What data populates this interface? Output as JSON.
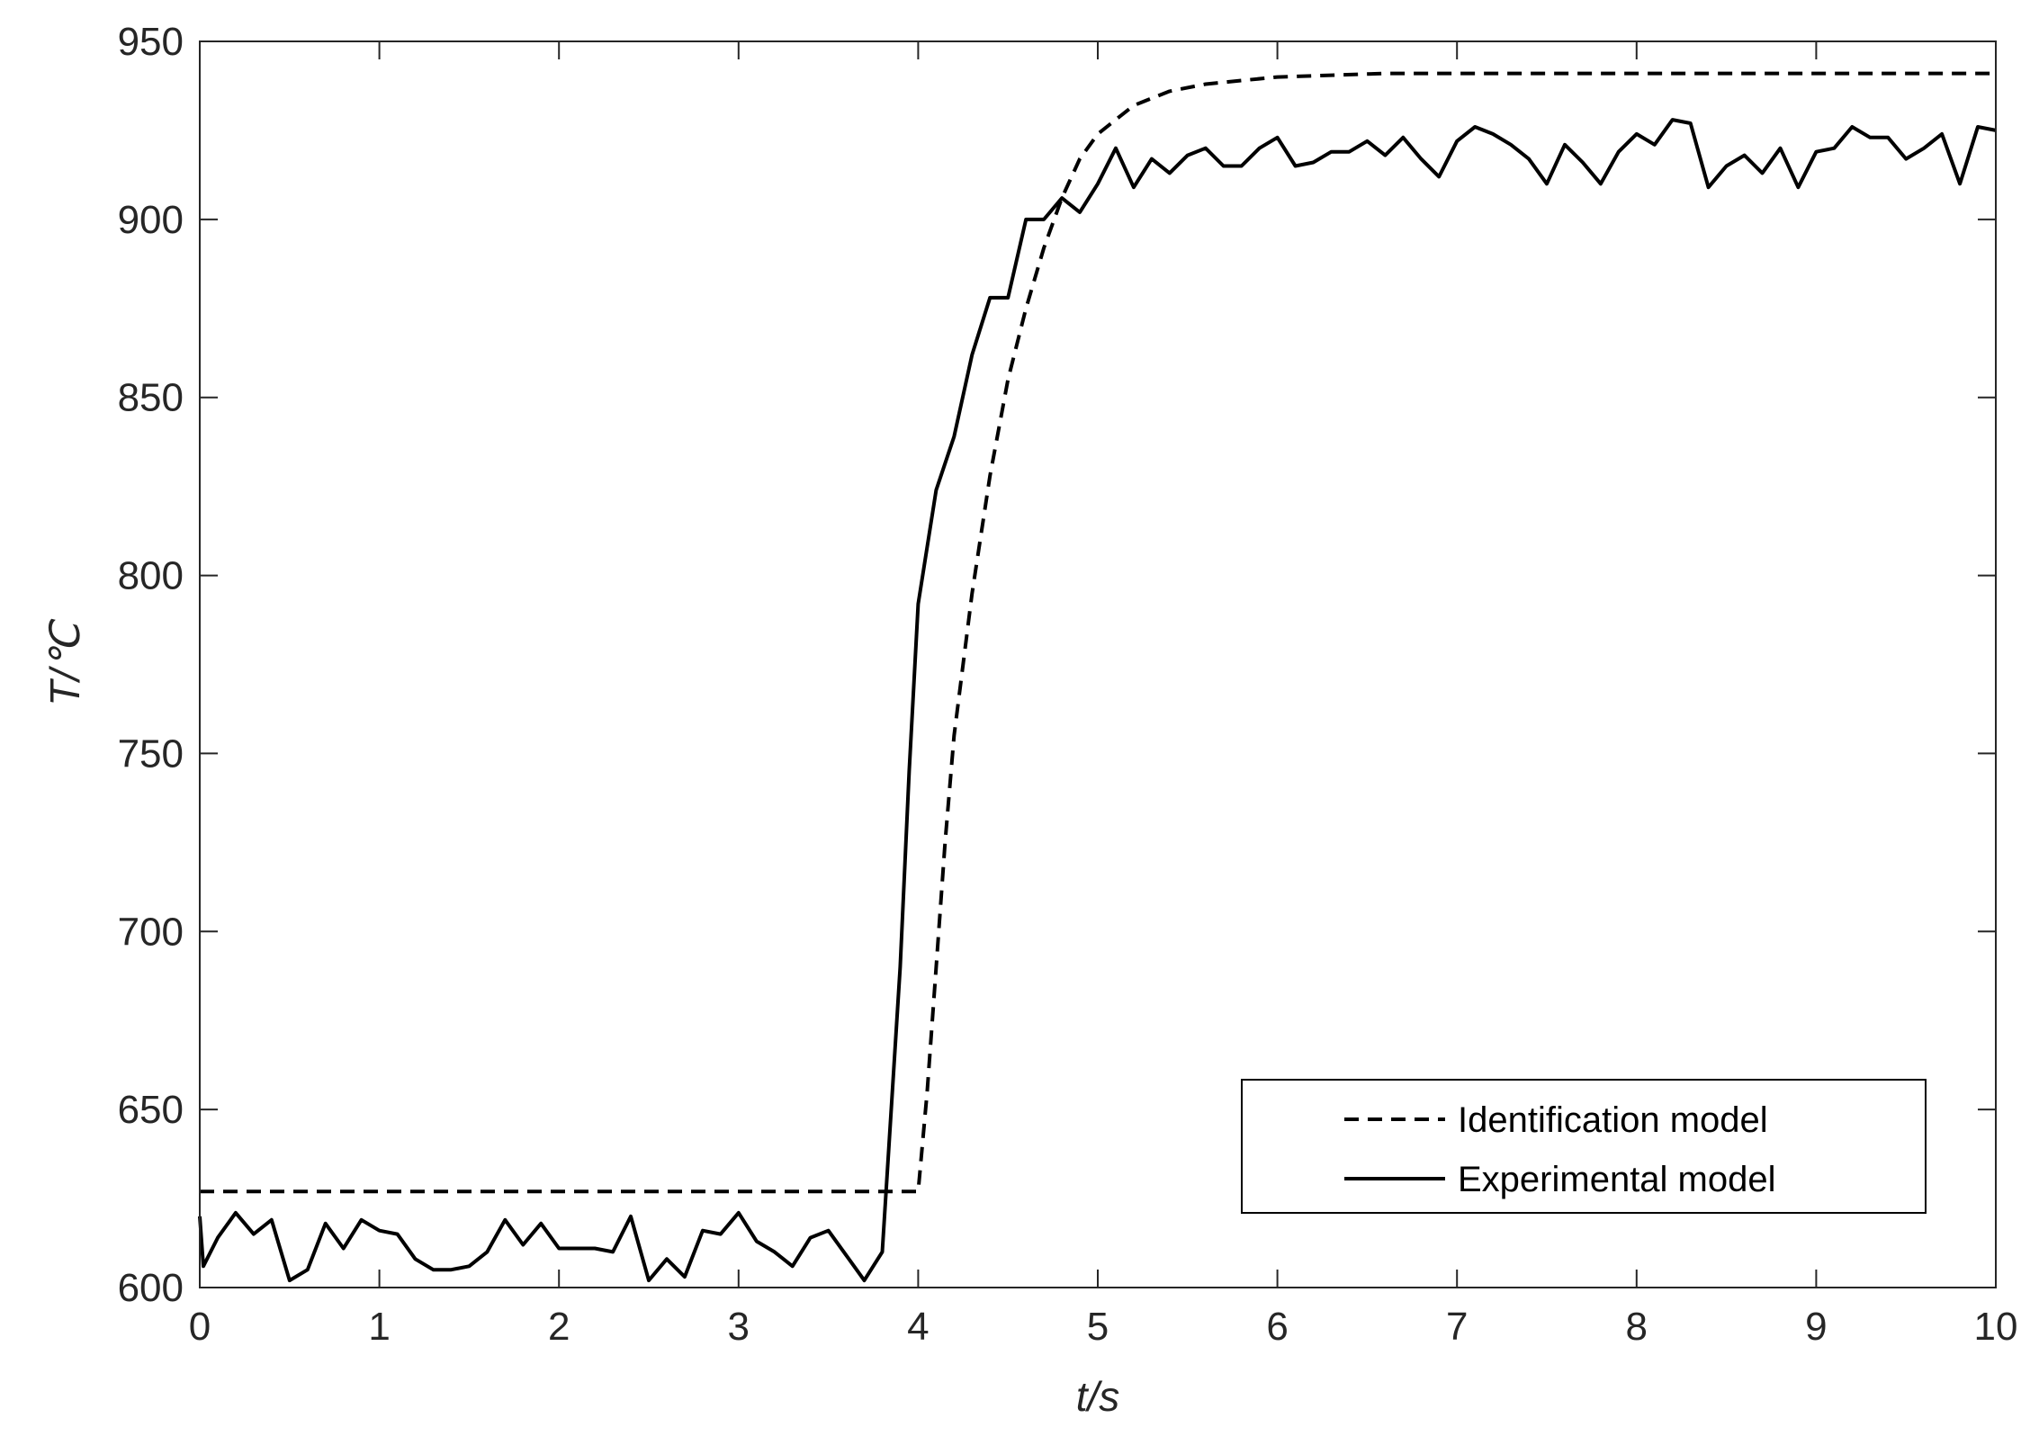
{
  "chart_data": {
    "type": "line",
    "xlabel": "t/s",
    "ylabel": "T/℃",
    "xlim": [
      0,
      10
    ],
    "ylim": [
      600,
      950
    ],
    "xticks": [
      "0",
      "1",
      "2",
      "3",
      "4",
      "5",
      "6",
      "7",
      "8",
      "9",
      "10"
    ],
    "yticks": [
      "600",
      "650",
      "700",
      "750",
      "800",
      "850",
      "900",
      "950"
    ],
    "grid": false,
    "legend_position": "bottom-right",
    "colors": {
      "line": "#000000",
      "axis": "#262626"
    },
    "series": [
      {
        "name": "Identification model",
        "style": "dashed",
        "x": [
          0,
          4.0,
          4.05,
          4.1,
          4.15,
          4.2,
          4.3,
          4.4,
          4.5,
          4.6,
          4.7,
          4.8,
          4.9,
          5.0,
          5.2,
          5.4,
          5.6,
          5.8,
          6.0,
          6.3,
          6.6,
          7.0,
          8.0,
          9.0,
          10.0
        ],
        "y": [
          627,
          627,
          655,
          690,
          725,
          755,
          795,
          828,
          855,
          875,
          892,
          906,
          917,
          924,
          932,
          936,
          938,
          939,
          940,
          940.5,
          941,
          941,
          941,
          941,
          941
        ]
      },
      {
        "name": "Experimental model",
        "style": "solid",
        "x": [
          0,
          0.02,
          0.1,
          0.2,
          0.3,
          0.4,
          0.5,
          0.6,
          0.7,
          0.8,
          0.9,
          1.0,
          1.1,
          1.2,
          1.3,
          1.4,
          1.5,
          1.6,
          1.7,
          1.8,
          1.9,
          2.0,
          2.1,
          2.2,
          2.3,
          2.4,
          2.5,
          2.6,
          2.7,
          2.8,
          2.9,
          3.0,
          3.1,
          3.2,
          3.3,
          3.4,
          3.5,
          3.6,
          3.7,
          3.8,
          3.9,
          3.95,
          4.0,
          4.1,
          4.2,
          4.3,
          4.4,
          4.5,
          4.6,
          4.7,
          4.8,
          4.9,
          5.0,
          5.1,
          5.2,
          5.3,
          5.4,
          5.5,
          5.6,
          5.7,
          5.8,
          5.9,
          6.0,
          6.1,
          6.2,
          6.3,
          6.4,
          6.5,
          6.6,
          6.7,
          6.8,
          6.9,
          7.0,
          7.1,
          7.2,
          7.3,
          7.4,
          7.5,
          7.6,
          7.7,
          7.8,
          7.9,
          8.0,
          8.1,
          8.2,
          8.3,
          8.4,
          8.5,
          8.6,
          8.7,
          8.8,
          8.9,
          9.0,
          9.1,
          9.2,
          9.3,
          9.4,
          9.5,
          9.6,
          9.7,
          9.8,
          9.9,
          10.0
        ],
        "y": [
          620,
          606,
          614,
          621,
          615,
          619,
          602,
          605,
          618,
          611,
          619,
          616,
          615,
          608,
          605,
          605,
          606,
          610,
          619,
          612,
          618,
          611,
          611,
          611,
          610,
          620,
          602,
          608,
          603,
          616,
          615,
          621,
          613,
          610,
          606,
          614,
          616,
          609,
          602,
          610,
          690,
          745,
          792,
          824,
          839,
          862,
          878,
          878,
          900,
          900,
          906,
          902,
          910,
          920,
          909,
          917,
          913,
          918,
          920,
          915,
          915,
          920,
          923,
          915,
          916,
          919,
          919,
          922,
          918,
          923,
          917,
          912,
          922,
          926,
          924,
          921,
          917,
          910,
          921,
          916,
          910,
          919,
          924,
          921,
          928,
          927,
          909,
          915,
          918,
          913,
          920,
          909,
          919,
          920,
          926,
          923,
          923,
          917,
          920,
          924,
          910,
          926,
          925
        ]
      }
    ]
  }
}
